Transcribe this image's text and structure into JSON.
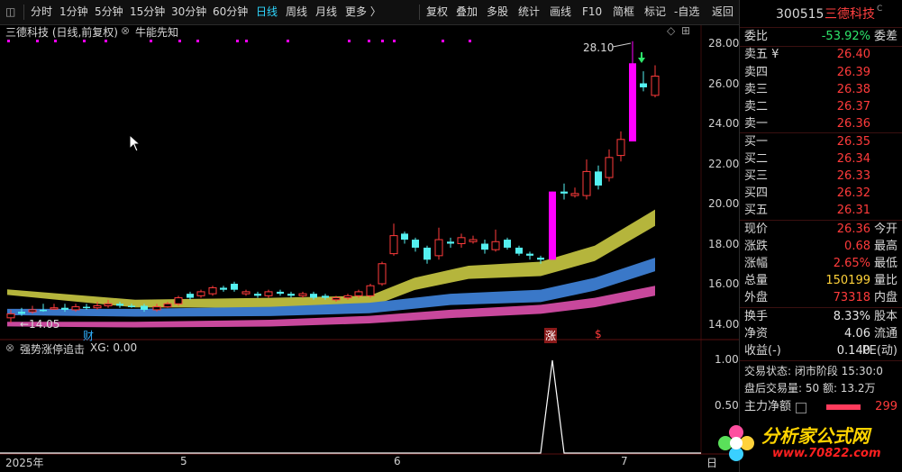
{
  "toolbar": {
    "left_icon": "◫",
    "tabs": [
      "分时",
      "1分钟",
      "5分钟",
      "15分钟",
      "30分钟",
      "60分钟",
      "日线",
      "周线",
      "月线",
      "更多 〉"
    ],
    "active_tab": "日线",
    "tools": [
      "复权",
      "叠加",
      "多股",
      "统计",
      "画线",
      "F10",
      "简框",
      "标记",
      "-自选",
      "返回"
    ]
  },
  "chart": {
    "title": "三德科技 (日线,前复权)",
    "indicator": "牛能先知",
    "high_marker": "28.10",
    "low_marker": "←14.05",
    "y_ticks": [
      "28.00",
      "26.00",
      "24.00",
      "22.00",
      "20.00",
      "18.00",
      "16.00",
      "14.00"
    ],
    "event_labels": [
      "财",
      "涨",
      "$"
    ],
    "sub_title": "强势涨停追击",
    "sub_value": "XG: 0.00",
    "sub_ticks": [
      "1.00",
      "0.50"
    ],
    "x_ticks": [
      "2025年",
      "5",
      "6",
      "7"
    ],
    "x_tail": "日"
  },
  "quote": {
    "code": "300515",
    "name": "三德科技",
    "name_suffix": "C",
    "weibi_label": "委比",
    "weibi_value": "-53.92%",
    "weicha_label": "委差",
    "asks": [
      {
        "label": "卖五 ¥",
        "price": "26.40"
      },
      {
        "label": "卖四",
        "price": "26.39"
      },
      {
        "label": "卖三",
        "price": "26.38"
      },
      {
        "label": "卖二",
        "price": "26.37"
      },
      {
        "label": "卖一",
        "price": "26.36"
      }
    ],
    "bids": [
      {
        "label": "买一",
        "price": "26.35"
      },
      {
        "label": "买二",
        "price": "26.34"
      },
      {
        "label": "买三",
        "price": "26.33"
      },
      {
        "label": "买四",
        "price": "26.32"
      },
      {
        "label": "买五",
        "price": "26.31"
      }
    ],
    "stats": [
      {
        "l1": "现价",
        "v1": "26.36",
        "l2": "今开",
        "c": "red"
      },
      {
        "l1": "涨跌",
        "v1": "0.68",
        "l2": "最高",
        "c": "red"
      },
      {
        "l1": "涨幅",
        "v1": "2.65%",
        "l2": "最低",
        "c": "red"
      },
      {
        "l1": "总量",
        "v1": "150199",
        "l2": "量比",
        "c": "yellow"
      },
      {
        "l1": "外盘",
        "v1": "73318",
        "l2": "内盘",
        "c": "red"
      },
      {
        "l1": "换手",
        "v1": "8.33%",
        "l2": "股本",
        "c": "white"
      },
      {
        "l1": "净资",
        "v1": "4.06",
        "l2": "流通",
        "c": "white"
      },
      {
        "l1": "收益(-)",
        "v1": "0.140",
        "l2": "PE(动)",
        "c": "white"
      }
    ],
    "status_line": "交易状态: 闭市阶段 15:30:0",
    "after_line": "盘后交易量: 50  额: 13.2万",
    "main_flow_label": "主力净额",
    "main_flow_value": "299"
  },
  "watermark": {
    "brand": "分析家公式网",
    "url": "www.70822.com"
  },
  "colors": {
    "up": "#ff3b3b",
    "down": "#54f0f0",
    "limit": "#ff00ff",
    "band_yellow": "#b5b53c",
    "band_blue": "#3a78c8",
    "band_pink": "#c8489c"
  }
}
